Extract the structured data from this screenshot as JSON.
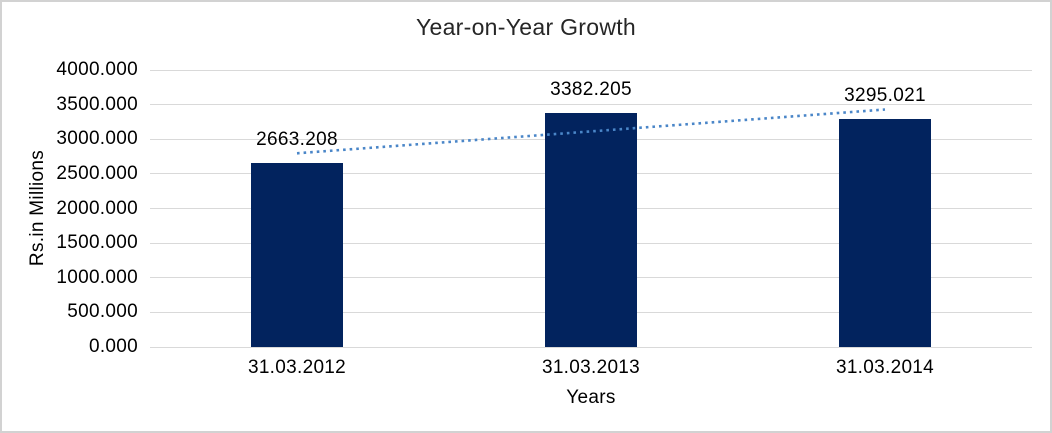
{
  "chart_data": {
    "type": "bar",
    "title": "Year-on-Year Growth",
    "xlabel": "Years",
    "ylabel": "Rs.in Millions",
    "categories": [
      "31.03.2012",
      "31.03.2013",
      "31.03.2014"
    ],
    "values": [
      2663.208,
      3382.205,
      3295.021
    ],
    "data_labels": [
      "2663.208",
      "3382.205",
      "3295.021"
    ],
    "ylim": [
      0,
      4000
    ],
    "ytick_step": 500,
    "ytick_labels": [
      "0.000",
      "500.000",
      "1000.000",
      "1500.000",
      "2000.000",
      "2500.000",
      "3000.000",
      "3500.000",
      "4000.000"
    ],
    "grid": true,
    "legend": "none",
    "trendline": {
      "type": "linear",
      "style": "dotted"
    },
    "colors": {
      "bar": "#02235E",
      "trendline": "#4A86C8",
      "gridline": "#D9D9D9",
      "text": "#000000",
      "frame_border": "#D2D2D2",
      "background": "#FFFFFF"
    }
  }
}
